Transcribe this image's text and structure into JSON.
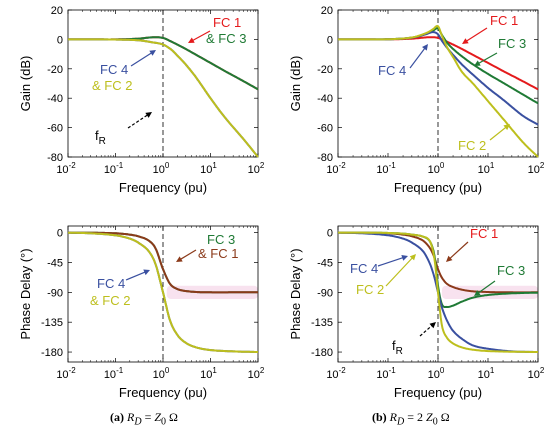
{
  "colors": {
    "red": "#e41a1c",
    "green": "#1f7a35",
    "blue": "#3a50a0",
    "olive": "#bdbf1d",
    "brown": "#8b3a1a",
    "pink": "#f5d6e8"
  },
  "chart_data": [
    {
      "type": "line",
      "panel": "a-gain",
      "xlabel": "Frequency (pu)",
      "ylabel": "Gain (dB)",
      "xscale": "log",
      "xlim": [
        0.01,
        100
      ],
      "ylim": [
        -80,
        20
      ],
      "xticks": [
        "10",
        "10",
        "10",
        "10",
        "10"
      ],
      "xtick_exps": [
        "-2",
        "-1",
        "0",
        "1",
        "2"
      ],
      "yticks": [
        "20",
        "0",
        "-20",
        "-40",
        "-60",
        "-80"
      ],
      "ytick_values": [
        20,
        0,
        -20,
        -40,
        -60,
        -80
      ],
      "grid": false,
      "vline_x": 1,
      "x": [
        0.01,
        0.03,
        0.1,
        0.3,
        0.6,
        1,
        1.5,
        2,
        3,
        5,
        10,
        20,
        50,
        100
      ],
      "series": [
        {
          "name": "FC 1",
          "color": "red",
          "values": [
            0,
            0,
            0,
            0.5,
            1.4,
            1.0,
            -1.5,
            -3.5,
            -6.5,
            -10.5,
            -16,
            -21.5,
            -28.5,
            -34
          ]
        },
        {
          "name": "FC 3",
          "color": "green",
          "values": [
            0,
            0,
            0,
            0.5,
            1.4,
            1.0,
            -1.5,
            -3.5,
            -6.5,
            -10.5,
            -16,
            -21.5,
            -28.5,
            -34
          ]
        },
        {
          "name": "FC 4",
          "color": "blue",
          "values": [
            0,
            0,
            -0.1,
            -0.6,
            -2,
            -3.5,
            -7,
            -11,
            -17,
            -26,
            -40,
            -53,
            -68,
            -80
          ]
        },
        {
          "name": "FC 2",
          "color": "olive",
          "values": [
            0,
            0,
            -0.1,
            -0.6,
            -2,
            -3.5,
            -7,
            -11,
            -17,
            -26,
            -40,
            -53,
            -68,
            -80
          ]
        }
      ],
      "annotations": [
        {
          "text": "FC 1",
          "color": "red"
        },
        {
          "text": "& FC 3",
          "color": "green"
        },
        {
          "text": "FC 4",
          "color": "blue"
        },
        {
          "text": "& FC 2",
          "color": "olive"
        },
        {
          "text": "f",
          "sub": "R",
          "color": "#000000"
        }
      ]
    },
    {
      "type": "line",
      "panel": "b-gain",
      "xlabel": "Frequency (pu)",
      "ylabel": "Gain (dB)",
      "xscale": "log",
      "xlim": [
        0.01,
        100
      ],
      "ylim": [
        -80,
        20
      ],
      "xticks": [
        "10",
        "10",
        "10",
        "10",
        "10"
      ],
      "xtick_exps": [
        "-2",
        "-1",
        "0",
        "1",
        "2"
      ],
      "yticks": [
        "20",
        "0",
        "-20",
        "-40",
        "-60",
        "-80"
      ],
      "ytick_values": [
        20,
        0,
        -20,
        -40,
        -60,
        -80
      ],
      "grid": false,
      "vline_x": 1,
      "x": [
        0.01,
        0.03,
        0.1,
        0.3,
        0.6,
        0.8,
        1,
        1.2,
        1.5,
        2,
        3,
        5,
        10,
        20,
        50,
        100
      ],
      "series": [
        {
          "name": "FC 1",
          "color": "red",
          "values": [
            0,
            0,
            0,
            0.5,
            1.4,
            1.5,
            1.0,
            0,
            -1.5,
            -3.5,
            -6.5,
            -10.5,
            -16,
            -21.5,
            -28.5,
            -34
          ]
        },
        {
          "name": "FC 3",
          "color": "green",
          "values": [
            0,
            0,
            0.1,
            1.2,
            3.8,
            6,
            7.5,
            3,
            -2,
            -6.5,
            -11.5,
            -17,
            -23.5,
            -29.5,
            -37.5,
            -43.5
          ]
        },
        {
          "name": "FC 4",
          "color": "blue",
          "values": [
            0,
            0,
            0.1,
            1.2,
            3.8,
            5,
            3.5,
            -1,
            -5.5,
            -10.5,
            -17,
            -24,
            -33,
            -41,
            -52,
            -58
          ]
        },
        {
          "name": "FC 2",
          "color": "olive",
          "values": [
            0,
            0,
            0.1,
            1.3,
            4.5,
            7,
            9,
            2.5,
            -5,
            -12,
            -22,
            -30,
            -42,
            -54,
            -70,
            -80
          ]
        }
      ],
      "annotations": [
        {
          "text": "FC 1",
          "color": "red"
        },
        {
          "text": "FC 3",
          "color": "green"
        },
        {
          "text": "FC 4",
          "color": "blue"
        },
        {
          "text": "FC 2",
          "color": "olive"
        }
      ]
    },
    {
      "type": "line",
      "panel": "a-phase",
      "xlabel": "Frequency (pu)",
      "ylabel": "Phase Delay (°)",
      "xscale": "log",
      "xlim": [
        0.01,
        100
      ],
      "ylim": [
        -195,
        10
      ],
      "xticks": [
        "10",
        "10",
        "10",
        "10",
        "10"
      ],
      "xtick_exps": [
        "-2",
        "-1",
        "0",
        "1",
        "2"
      ],
      "yticks": [
        "0",
        "-45",
        "-90",
        "-135",
        "-180"
      ],
      "ytick_values": [
        0,
        -45,
        -90,
        -135,
        -180
      ],
      "grid": false,
      "vline_x": 1,
      "x": [
        0.01,
        0.03,
        0.1,
        0.2,
        0.3,
        0.5,
        0.7,
        1,
        1.4,
        2,
        3,
        5,
        10,
        30,
        100
      ],
      "series": [
        {
          "name": "FC 3",
          "color": "green",
          "values": [
            0,
            -0.2,
            -1,
            -3,
            -5.5,
            -12,
            -24,
            -55,
            -77,
            -85,
            -88,
            -89.5,
            -90,
            -90,
            -90
          ]
        },
        {
          "name": "FC 1",
          "color": "brown",
          "values": [
            0,
            -0.2,
            -1,
            -3,
            -5.5,
            -12,
            -24,
            -55,
            -77,
            -85,
            -88,
            -89.5,
            -90,
            -90,
            -90
          ]
        },
        {
          "name": "FC 4",
          "color": "blue",
          "values": [
            0,
            -1,
            -4,
            -9,
            -15,
            -28,
            -48,
            -90,
            -132,
            -154,
            -166,
            -173,
            -177,
            -179,
            -180
          ]
        },
        {
          "name": "FC 2",
          "color": "olive",
          "values": [
            0,
            -1,
            -4,
            -9,
            -15,
            -28,
            -48,
            -90,
            -132,
            -154,
            -166,
            -173,
            -177,
            -179,
            -180
          ]
        }
      ],
      "annotations": [
        {
          "text": "FC 3",
          "color": "green"
        },
        {
          "text": "& FC 1",
          "color": "brown"
        },
        {
          "text": "FC 4",
          "color": "blue"
        },
        {
          "text": "& FC 2",
          "color": "olive"
        }
      ]
    },
    {
      "type": "line",
      "panel": "b-phase",
      "xlabel": "Frequency (pu)",
      "ylabel": "Phase Delay (°)",
      "xscale": "log",
      "xlim": [
        0.01,
        100
      ],
      "ylim": [
        -195,
        10
      ],
      "xticks": [
        "10",
        "10",
        "10",
        "10",
        "10"
      ],
      "xtick_exps": [
        "-2",
        "-1",
        "0",
        "1",
        "2"
      ],
      "yticks": [
        "0",
        "-45",
        "-90",
        "-135",
        "-180"
      ],
      "ytick_values": [
        0,
        -45,
        -90,
        -135,
        -180
      ],
      "grid": false,
      "vline_x": 1,
      "x": [
        0.01,
        0.03,
        0.1,
        0.2,
        0.3,
        0.5,
        0.7,
        0.85,
        1,
        1.2,
        1.5,
        2,
        3,
        5,
        10,
        30,
        100
      ],
      "series": [
        {
          "name": "FC 1",
          "color": "brown",
          "values": [
            0,
            -0.2,
            -1,
            -3,
            -5.5,
            -12,
            -24,
            -38,
            -55,
            -68,
            -77,
            -82,
            -86,
            -88.5,
            -89.5,
            -90,
            -90
          ]
        },
        {
          "name": "FC 3",
          "color": "green",
          "values": [
            0,
            0,
            -0.5,
            -1.5,
            -3,
            -6,
            -14,
            -35,
            -80,
            -108,
            -112,
            -110,
            -104,
            -98,
            -94,
            -91.5,
            -90.5
          ]
        },
        {
          "name": "FC 4",
          "color": "blue",
          "values": [
            0,
            -1,
            -4,
            -9,
            -15,
            -28,
            -48,
            -68,
            -90,
            -113,
            -132,
            -148,
            -160,
            -170,
            -175,
            -179,
            -180
          ]
        },
        {
          "name": "FC 2",
          "color": "olive",
          "values": [
            0,
            0,
            -0.5,
            -1.5,
            -3,
            -6,
            -14,
            -40,
            -90,
            -140,
            -158,
            -167,
            -173,
            -176.5,
            -178.5,
            -179.5,
            -180
          ]
        }
      ],
      "annotations": [
        {
          "text": "FC 1",
          "color": "red"
        },
        {
          "text": "FC 4",
          "color": "blue"
        },
        {
          "text": "FC 2",
          "color": "olive"
        },
        {
          "text": "FC 3",
          "color": "green"
        },
        {
          "text": "f",
          "sub": "R",
          "color": "#000000"
        }
      ]
    }
  ],
  "captions": [
    {
      "label": "(a)",
      "rd": "R",
      "rd_sub": "D",
      "eq": "=",
      "z": "Z",
      "z_sub": "0",
      "unit": "Ω"
    },
    {
      "label": "(b)",
      "rd": "R",
      "rd_sub": "D",
      "eq": "= 2",
      "z": "Z",
      "z_sub": "0",
      "unit": "Ω"
    }
  ]
}
